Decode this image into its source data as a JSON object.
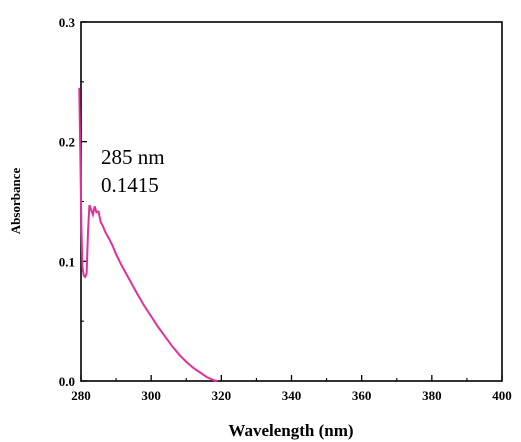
{
  "chart_data": {
    "type": "line",
    "title": "",
    "xlabel": "Wavelength (nm)",
    "ylabel": "Absorbance",
    "xlim": [
      280,
      400
    ],
    "ylim": [
      0.0,
      0.3
    ],
    "x_ticks": [
      280,
      300,
      320,
      340,
      360,
      380,
      400
    ],
    "y_ticks": [
      "0.0",
      "0.1",
      "0.2",
      "0.3"
    ],
    "grid": false,
    "legend": "none",
    "series": [
      {
        "color": "#e0309a",
        "points": [
          [
            279.5,
            0.245
          ],
          [
            279.8,
            0.19
          ],
          [
            280.1,
            0.13
          ],
          [
            280.4,
            0.095
          ],
          [
            280.8,
            0.088
          ],
          [
            281.2,
            0.087
          ],
          [
            281.6,
            0.09
          ],
          [
            282.0,
            0.125
          ],
          [
            282.4,
            0.147
          ],
          [
            282.9,
            0.143
          ],
          [
            283.4,
            0.139
          ],
          [
            283.9,
            0.146
          ],
          [
            284.4,
            0.141
          ],
          [
            285.0,
            0.1415
          ],
          [
            285.6,
            0.133
          ],
          [
            286.3,
            0.129
          ],
          [
            287.0,
            0.124
          ],
          [
            288.0,
            0.119
          ],
          [
            289.0,
            0.113
          ],
          [
            290.0,
            0.106
          ],
          [
            291.5,
            0.097
          ],
          [
            293.0,
            0.089
          ],
          [
            294.5,
            0.081
          ],
          [
            296.0,
            0.073
          ],
          [
            298.0,
            0.063
          ],
          [
            300.0,
            0.054
          ],
          [
            302.0,
            0.045
          ],
          [
            304.0,
            0.037
          ],
          [
            306.0,
            0.029
          ],
          [
            308.0,
            0.022
          ],
          [
            310.0,
            0.016
          ],
          [
            312.0,
            0.011
          ],
          [
            314.0,
            0.007
          ],
          [
            316.0,
            0.003
          ],
          [
            318.0,
            0.0005
          ],
          [
            319.0,
            0.0
          ]
        ]
      }
    ],
    "annotations": [
      {
        "text": "285 nm"
      },
      {
        "text": "0.1415"
      }
    ]
  }
}
